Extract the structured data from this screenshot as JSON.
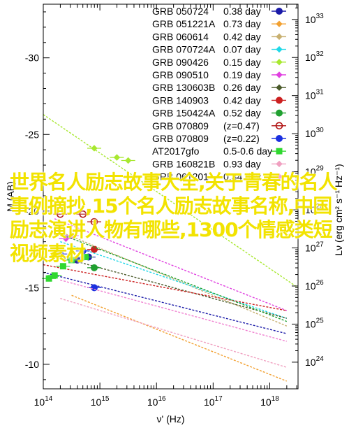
{
  "chart_data": {
    "type": "scatter",
    "xlabel": "ν' (Hz)",
    "ylabel_left": "M (AB)",
    "ylabel_right": "Lν (erg cm² s⁻¹ Hz⁻¹)",
    "x_log_range": [
      14,
      18.5
    ],
    "y_left_range": [
      -8.4,
      -33.5
    ],
    "y_right_exponent_range": [
      23.3,
      33.4
    ],
    "x_ticks": [
      {
        "label": "10",
        "exp": "14",
        "value": 14
      },
      {
        "label": "10",
        "exp": "15",
        "value": 15
      },
      {
        "label": "10",
        "exp": "16",
        "value": 16
      },
      {
        "label": "10",
        "exp": "17",
        "value": 17
      },
      {
        "label": "10",
        "exp": "18",
        "value": 18
      }
    ],
    "y_left_ticks": [
      {
        "label": "-10",
        "value": -10
      },
      {
        "label": "-15",
        "value": -15
      },
      {
        "label": "-20",
        "value": -20
      },
      {
        "label": "-25",
        "value": -25
      },
      {
        "label": "-30",
        "value": -30
      }
    ],
    "y_right_ticks": [
      {
        "label": "10",
        "exp": "24",
        "value": 24
      },
      {
        "label": "10",
        "exp": "25",
        "value": 25
      },
      {
        "label": "10",
        "exp": "26",
        "value": 26
      },
      {
        "label": "10",
        "exp": "27",
        "value": 27
      },
      {
        "label": "10",
        "exp": "28",
        "value": 28
      },
      {
        "label": "10",
        "exp": "29",
        "value": 29
      },
      {
        "label": "10",
        "exp": "30",
        "value": 30
      },
      {
        "label": "10",
        "exp": "31",
        "value": 31
      },
      {
        "label": "10",
        "exp": "32",
        "value": 32
      },
      {
        "label": "10",
        "exp": "33",
        "value": 33
      }
    ],
    "legend_position": "top-right",
    "series": [
      {
        "name": "GRB 050724",
        "time": "0.38 day",
        "color": "#1a1aa8",
        "marker": "circle",
        "line": {
          "x": [
            14.0,
            18.3
          ],
          "y": [
            -16.0,
            -12.0
          ]
        },
        "points": [
          {
            "x": 14.8,
            "y": -17.0
          },
          {
            "x": 14.6,
            "y": -16.8
          }
        ]
      },
      {
        "name": "GRB 051221A",
        "time": "0.73 day",
        "color": "#f2a030",
        "marker": "diamond",
        "line": {
          "x": [
            14.5,
            18.3
          ],
          "y": [
            -14.5,
            -8.9
          ]
        },
        "points": []
      },
      {
        "name": "GRB 060614",
        "time": "0.42 day",
        "color": "#c8b070",
        "marker": "diamond",
        "line": {
          "x": [
            14.4,
            18.3
          ],
          "y": [
            -18.5,
            -12.5
          ]
        },
        "points": []
      },
      {
        "name": "GRB 070724A",
        "time": "0.07 day",
        "color": "#20d8e8",
        "marker": "diamond",
        "line": {
          "x": [
            14.3,
            18.3
          ],
          "y": [
            -18.0,
            -13.0
          ]
        },
        "points": []
      },
      {
        "name": "GRB 090426",
        "time": "0.15 day",
        "color": "#a8e830",
        "marker": "diamond",
        "line": {
          "x": [
            14.0,
            18.5
          ],
          "y": [
            -26.3,
            -15.0
          ]
        },
        "points": [
          {
            "x": 14.9,
            "y": -24.1
          },
          {
            "x": 15.3,
            "y": -23.5
          },
          {
            "x": 15.5,
            "y": -23.3
          }
        ]
      },
      {
        "name": "GRB 090510",
        "time": "0.19 day",
        "color": "#e040e0",
        "marker": "diamond",
        "line": {
          "x": [
            14.2,
            18.3
          ],
          "y": [
            -19.5,
            -13.5
          ]
        },
        "points": [
          {
            "x": 14.4,
            "y": -18.2
          },
          {
            "x": 14.5,
            "y": -18.4
          }
        ]
      },
      {
        "name": "GRB 130603B",
        "time": "0.26 day",
        "color": "#4a5a2a",
        "marker": "diamond",
        "line": {
          "x": [
            14.3,
            18.3
          ],
          "y": [
            -17.0,
            -13.0
          ]
        },
        "points": []
      },
      {
        "name": "GRB 140903",
        "time": "0.42 day",
        "color": "#cc2020",
        "marker": "circle",
        "line": {
          "x": [
            14.0,
            18.3
          ],
          "y": [
            -16.5,
            -13.5
          ]
        },
        "points": [
          {
            "x": 14.9,
            "y": -17.5
          }
        ]
      },
      {
        "name": "GRB 150424A",
        "time": "0.52 day",
        "color": "#20a030",
        "marker": "circle",
        "line": {
          "x": [
            14.3,
            18.3
          ],
          "y": [
            -18.5,
            -12.8
          ]
        },
        "points": [
          {
            "x": 14.9,
            "y": -16.3
          }
        ]
      },
      {
        "name": "GRB 070809",
        "time": "(z=0.47)",
        "color": "#b01010",
        "marker": "open-circle",
        "line": null,
        "points": [
          {
            "x": 14.3,
            "y": -19.8
          },
          {
            "x": 14.7,
            "y": -19.8
          },
          {
            "x": 14.9,
            "y": -19.3
          }
        ]
      },
      {
        "name": "GRB 070809",
        "time": "(z=0.22)",
        "color": "#1a30e0",
        "marker": "circle",
        "line": null,
        "points": [
          {
            "x": 14.3,
            "y": -17.2
          },
          {
            "x": 14.7,
            "y": -17.4
          },
          {
            "x": 14.9,
            "y": -15.0
          }
        ]
      },
      {
        "name": "AT2017gfo",
        "time": "0.5-0.6 day",
        "color": "#30d830",
        "marker": "square",
        "line": null,
        "points": [
          {
            "x": 14.1,
            "y": -15.6
          },
          {
            "x": 14.2,
            "y": -15.8
          },
          {
            "x": 14.35,
            "y": -16.4
          },
          {
            "x": 14.5,
            "y": -16.8
          },
          {
            "x": 14.75,
            "y": -17.0
          }
        ]
      },
      {
        "name": "GRB 160821B",
        "time": "0.93 day",
        "color": "#f0a0c0",
        "marker": "diamond",
        "line": {
          "x": [
            14.3,
            18.3
          ],
          "y": [
            -14.3,
            -9.8
          ]
        },
        "points": []
      },
      {
        "name": "GRB 061201",
        "time": "0.34 day",
        "color": "#f080d0",
        "marker": "diamond",
        "line": {
          "x": [
            14.3,
            18.3
          ],
          "y": [
            -15.5,
            -11.5
          ]
        },
        "points": []
      }
    ]
  },
  "watermark": {
    "text": "世界名人励志故事大全,关于青春的名人事例摘抄,15个名人励志故事名称,中国励志演讲人物有哪些,1300个情感类短视频素材"
  }
}
